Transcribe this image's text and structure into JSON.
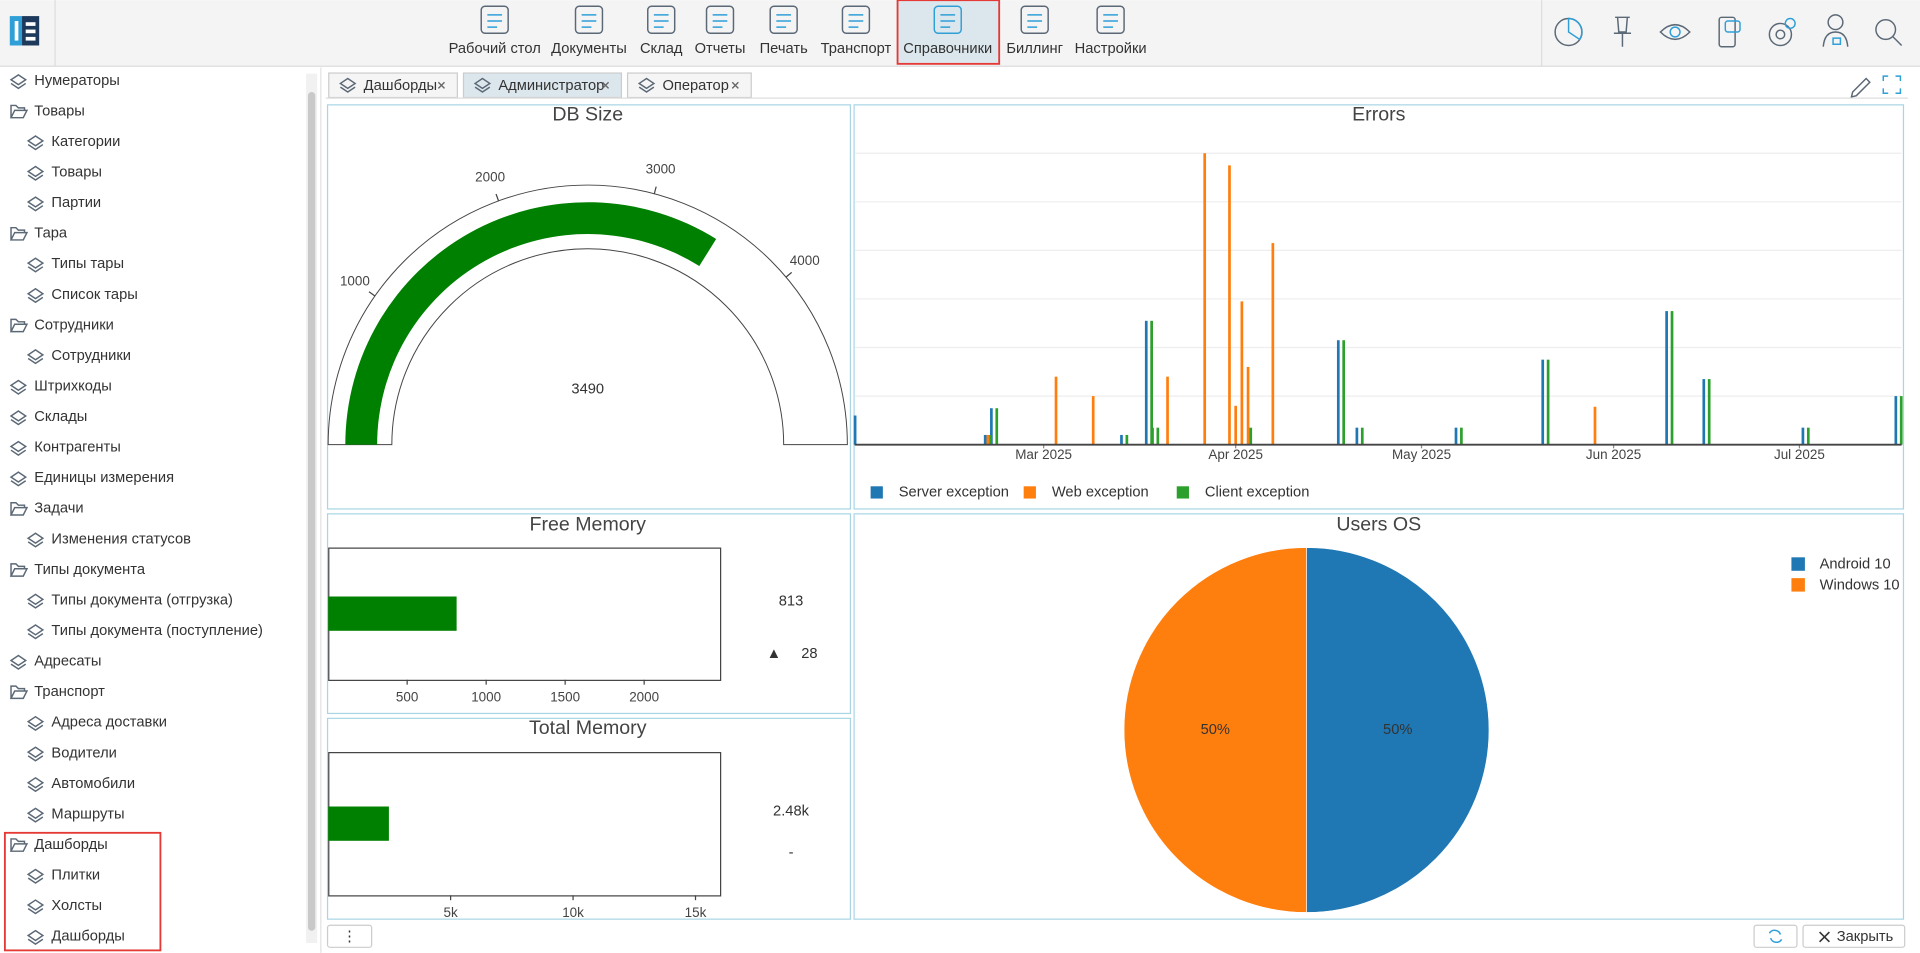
{
  "toolbar": {
    "items": [
      "Рабочий стол",
      "Документы",
      "Склад",
      "Отчеты",
      "Печать",
      "Транспорт",
      "Справочники",
      "Биллинг",
      "Настройки"
    ],
    "active": 6
  },
  "sidebar": {
    "tree": [
      {
        "label": "Нумераторы"
      },
      {
        "label": "Товары",
        "children": [
          "Категории",
          "Товары",
          "Партии"
        ]
      },
      {
        "label": "Тара",
        "children": [
          "Типы тары",
          "Список тары"
        ]
      },
      {
        "label": "Сотрудники",
        "children": [
          "Сотрудники"
        ]
      },
      {
        "label": "Штрихкоды"
      },
      {
        "label": "Склады"
      },
      {
        "label": "Контрагенты"
      },
      {
        "label": "Единицы измерения"
      },
      {
        "label": "Задачи",
        "children": [
          "Изменения статусов"
        ]
      },
      {
        "label": "Типы документа",
        "children": [
          "Типы документа (отгрузка)",
          "Типы документа (поступление)"
        ]
      },
      {
        "label": "Адресаты"
      },
      {
        "label": "Транспорт",
        "children": [
          "Адреса доставки",
          "Водители",
          "Автомобили",
          "Маршруты"
        ]
      },
      {
        "label": "Дашборды",
        "children": [
          "Плитки",
          "Холсты",
          "Дашборды"
        ]
      }
    ]
  },
  "tabs": {
    "items": [
      "Дашборды",
      "Администратор",
      "Оператор"
    ],
    "active": 1
  },
  "dashboard": {
    "db_size": {
      "type": "gauge",
      "title": "DB Size",
      "value": 3490,
      "range": [
        0,
        5150
      ],
      "ticks": [
        1000,
        2000,
        3000,
        4000
      ],
      "color": "#008000"
    },
    "errors": {
      "type": "bar",
      "title": "Errors",
      "x": [
        30,
        51,
        52,
        62,
        68,
        73,
        77,
        78,
        80,
        86,
        90,
        91,
        92,
        93,
        97,
        108,
        111,
        127,
        141,
        149,
        161,
        167,
        183,
        198
      ],
      "xlim": [
        29.5,
        198.5
      ],
      "xticks": [
        {
          "value": 60,
          "label": "Mar 2025"
        },
        {
          "value": 91,
          "label": "Apr 2025"
        },
        {
          "value": 121,
          "label": "May 2025"
        },
        {
          "value": 152,
          "label": "Jun 2025"
        },
        {
          "value": 182,
          "label": "Jul 2025"
        }
      ],
      "ylim": [
        0,
        6
      ],
      "grid": true,
      "gridlines": [
        1,
        2,
        3,
        4,
        5,
        6
      ],
      "series": [
        {
          "name": "Server exception",
          "color": "#1f77b4",
          "values": [
            0.6,
            0.2,
            0.75,
            null,
            null,
            0.2,
            2.55,
            0.35,
            null,
            null,
            null,
            null,
            null,
            null,
            null,
            2.15,
            0.35,
            0.35,
            1.75,
            null,
            2.75,
            1.35,
            0.35,
            1.0
          ]
        },
        {
          "name": "Web exception",
          "color": "#ff7f0e",
          "values": [
            null,
            0.2,
            null,
            1.4,
            1.0,
            null,
            null,
            null,
            1.4,
            6.0,
            5.75,
            0.8,
            2.95,
            1.6,
            4.15,
            null,
            null,
            null,
            null,
            0.78,
            null,
            null,
            null,
            null
          ]
        },
        {
          "name": "Client exception",
          "color": "#2ca02c",
          "values": [
            null,
            0.2,
            0.75,
            null,
            null,
            0.2,
            2.55,
            0.35,
            null,
            null,
            null,
            null,
            null,
            0.35,
            null,
            2.15,
            0.35,
            0.35,
            1.75,
            null,
            2.75,
            1.35,
            0.35,
            1.0
          ]
        }
      ]
    },
    "free_memory": {
      "type": "bullet",
      "title": "Free Memory",
      "value": 813,
      "delta": 28,
      "delta_symbol": "▲",
      "xlim": [
        0,
        2480
      ],
      "xticks": [
        500,
        1000,
        1500,
        2000
      ],
      "color": "#008000"
    },
    "total_memory": {
      "type": "bullet",
      "title": "Total Memory",
      "value": 2480,
      "value_label": "2.48k",
      "delta": "-",
      "xlim": [
        0,
        16000
      ],
      "xticks": [
        {
          "value": 5000,
          "label": "5k"
        },
        {
          "value": 10000,
          "label": "10k"
        },
        {
          "value": 15000,
          "label": "15k"
        }
      ],
      "color": "#008000"
    },
    "users_os": {
      "type": "pie",
      "title": "Users OS",
      "categories": [
        "Android 10",
        "Windows 10"
      ],
      "values": [
        50,
        50
      ],
      "value_labels": [
        "50%",
        "50%"
      ],
      "colors": [
        "#1f77b4",
        "#ff7f0e"
      ]
    }
  },
  "footer": {
    "menu": "⋮",
    "close": "Закрыть"
  }
}
